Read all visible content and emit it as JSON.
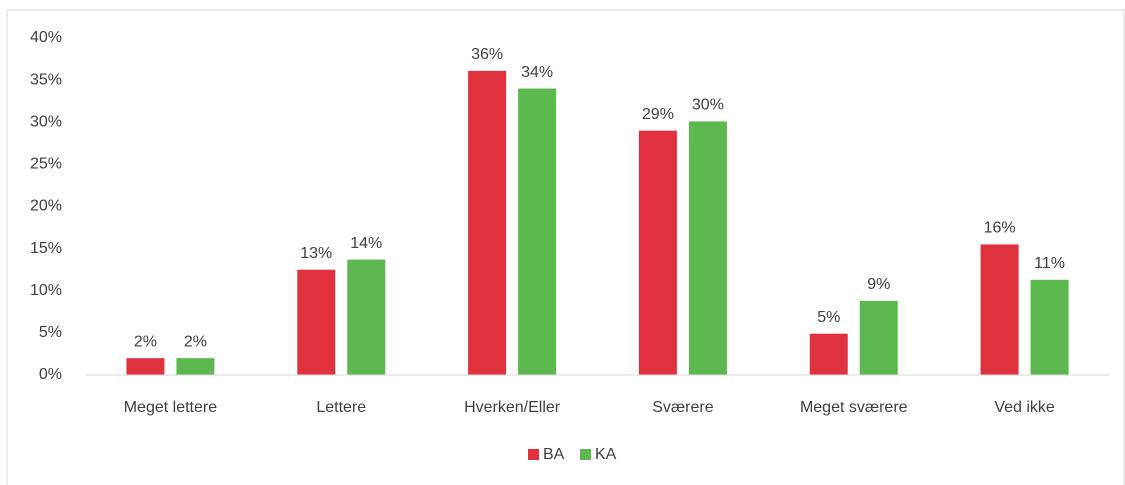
{
  "chart_data": {
    "type": "bar",
    "categories": [
      "Meget lettere",
      "Lettere",
      "Hverken/Eller",
      "Sværere",
      "Meget sværere",
      "Ved ikke"
    ],
    "series": [
      {
        "name": "BA",
        "color": "#e0313f",
        "values": [
          2.0,
          12.5,
          36.1,
          29.0,
          4.9,
          15.5
        ],
        "value_labels": [
          "2%",
          "13%",
          "36%",
          "29%",
          "5%",
          "16%"
        ]
      },
      {
        "name": "KA",
        "color": "#5db84f",
        "values": [
          2.0,
          13.7,
          34.0,
          30.1,
          8.8,
          11.3
        ],
        "value_labels": [
          "2%",
          "14%",
          "34%",
          "30%",
          "9%",
          "11%"
        ]
      }
    ],
    "ylim": [
      0,
      40
    ],
    "yticks": [
      {
        "value": 0,
        "label": "0%"
      },
      {
        "value": 5,
        "label": "5%"
      },
      {
        "value": 10,
        "label": "10%"
      },
      {
        "value": 15,
        "label": "15%"
      },
      {
        "value": 20,
        "label": "20%"
      },
      {
        "value": 25,
        "label": "25%"
      },
      {
        "value": 30,
        "label": "30%"
      },
      {
        "value": 35,
        "label": "35%"
      },
      {
        "value": 40,
        "label": "40%"
      }
    ],
    "legend": "bottom"
  }
}
